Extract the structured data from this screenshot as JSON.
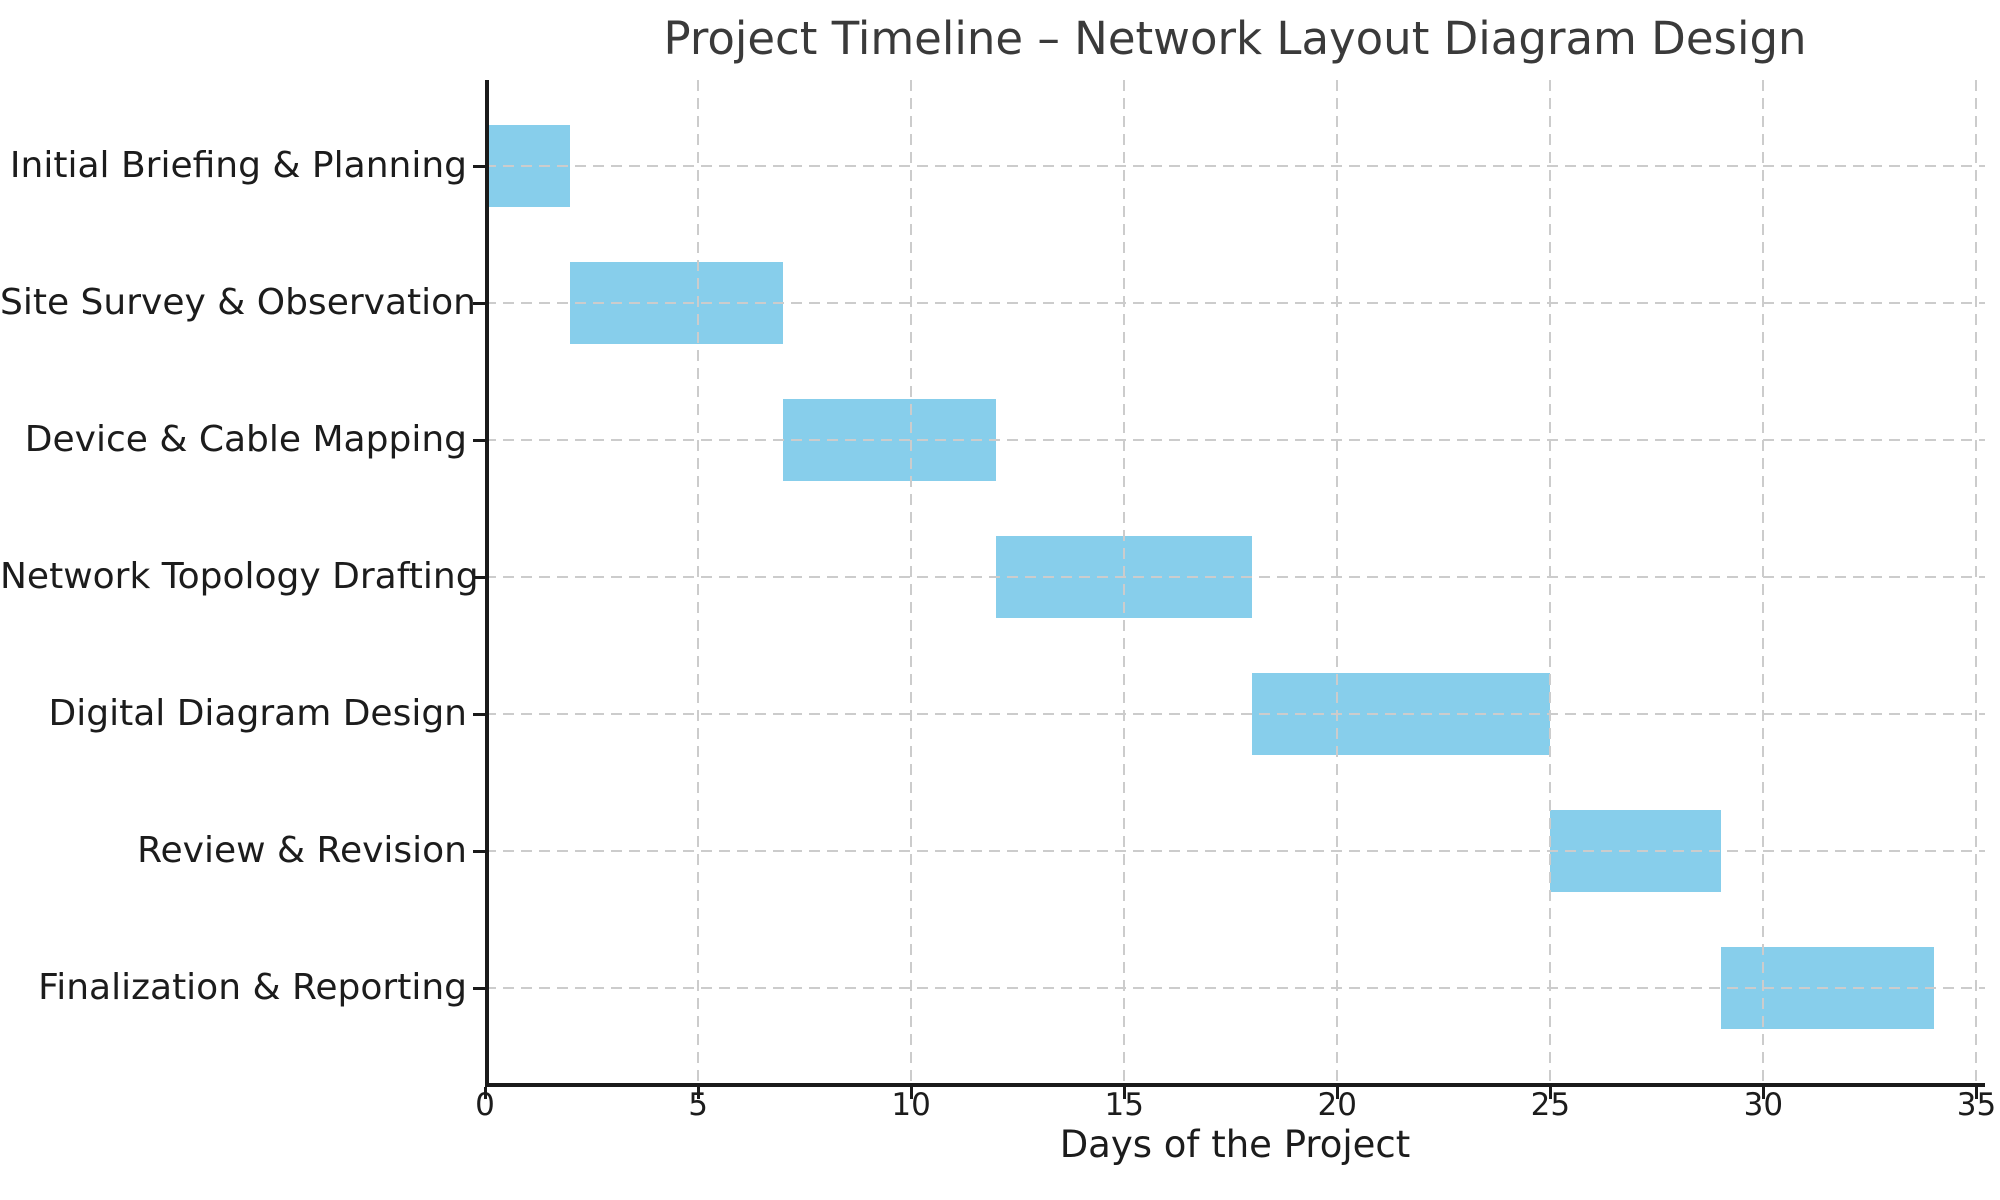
{
  "chart_data": {
    "type": "bar",
    "orientation": "horizontal",
    "subtype": "gantt",
    "title": "Project Timeline – Network Layout Diagram Design",
    "xlabel": "Days of the Project",
    "ylabel": "",
    "categories": [
      "Initial Briefing & Planning",
      "Site Survey & Observation",
      "Device & Cable Mapping",
      "Network Topology Drafting",
      "Digital Diagram Design",
      "Review & Revision",
      "Finalization & Reporting"
    ],
    "bars": [
      {
        "task": "Initial Briefing & Planning",
        "start": 0,
        "end": 2,
        "duration": 2
      },
      {
        "task": "Site Survey & Observation",
        "start": 2,
        "end": 7,
        "duration": 5
      },
      {
        "task": "Device & Cable Mapping",
        "start": 7,
        "end": 12,
        "duration": 5
      },
      {
        "task": "Network Topology Drafting",
        "start": 12,
        "end": 18,
        "duration": 6
      },
      {
        "task": "Digital Diagram Design",
        "start": 18,
        "end": 25,
        "duration": 7
      },
      {
        "task": "Review & Revision",
        "start": 25,
        "end": 29,
        "duration": 4
      },
      {
        "task": "Finalization & Reporting",
        "start": 29,
        "end": 34,
        "duration": 5
      }
    ],
    "x_ticks": [
      0,
      5,
      10,
      15,
      20,
      25,
      30,
      35
    ],
    "xlim": [
      0,
      35.2
    ],
    "grid": {
      "visible": true,
      "linestyle": "dashed",
      "drawn_above_bars": true
    },
    "legend_position": "none",
    "bar_height_fraction": 0.6
  },
  "colors": {
    "background": "#ffffff",
    "bar": "#87CEEB",
    "grid": "#cccccc",
    "axis": "#1a1a1a",
    "tick_text": "#1c1c1c",
    "title_text": "#3a3a3a"
  }
}
